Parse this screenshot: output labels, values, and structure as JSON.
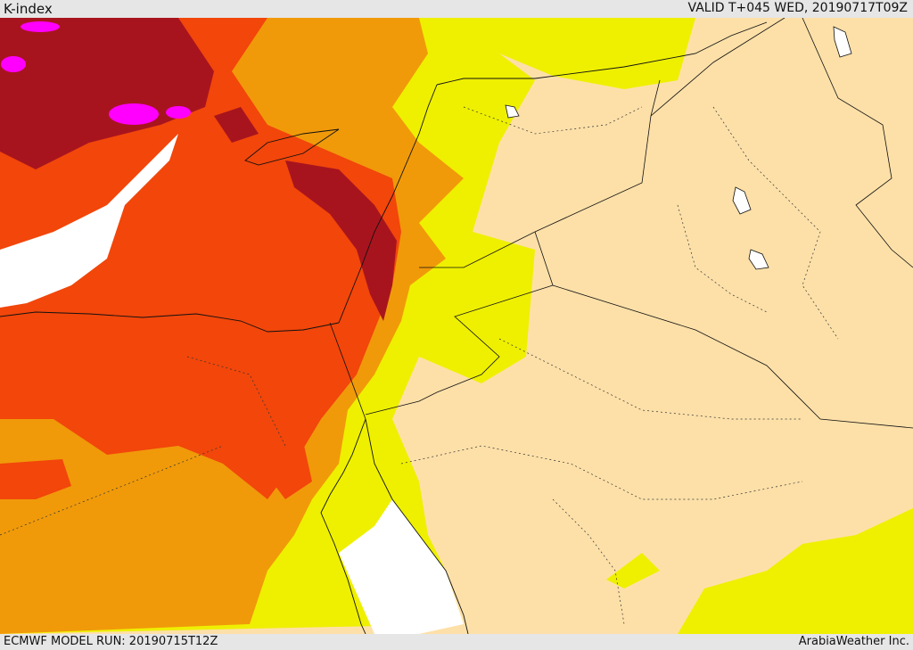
{
  "header": {
    "title": "K-index",
    "valid": "VALID T+045 WED, 20190717T09Z"
  },
  "footer": {
    "model_run": "ECMWF MODEL RUN: 20190715T12Z",
    "credit": "ArabiaWeather Inc."
  },
  "colors": {
    "beige": "#fde0a8",
    "yellow": "#eef000",
    "orange": "#f09a0a",
    "red_orange": "#f2460a",
    "dark_red": "#a8141e",
    "magenta": "#ff00ff",
    "white": "#ffffff"
  }
}
